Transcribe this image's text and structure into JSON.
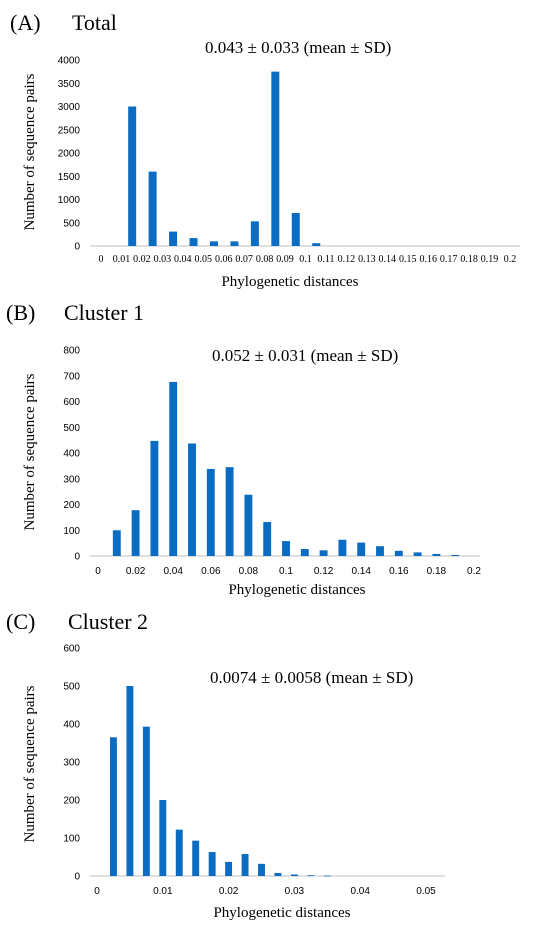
{
  "chart_data": [
    {
      "type": "bar",
      "panel": "(A)",
      "title": "Total",
      "subtitle": "0.043 ± 0.033 (mean ± SD)",
      "xlabel": "Phylogenetic distances",
      "ylabel": "Number of sequence pairs",
      "ylim": [
        0,
        4000
      ],
      "yticks": [
        "0",
        "500",
        "1000",
        "1500",
        "2000",
        "2500",
        "3000",
        "3500",
        "4000"
      ],
      "categories": [
        "0",
        "0.01",
        "0.02",
        "0.03",
        "0.04",
        "0.05",
        "0.06",
        "0.07",
        "0.08",
        "0.09",
        "0.1",
        "0.11",
        "0.12",
        "0.13",
        "0.14",
        "0.15",
        "0.16",
        "0.17",
        "0.18",
        "0.19",
        "0.2"
      ],
      "values": [
        0,
        3000,
        1600,
        310,
        170,
        100,
        100,
        530,
        3750,
        710,
        60,
        0,
        0,
        0,
        0,
        0,
        0,
        0,
        0,
        0,
        0
      ],
      "grid": false
    },
    {
      "type": "bar",
      "panel": "(B)",
      "title": "Cluster 1",
      "subtitle": "0.052 ± 0.031 (mean ± SD)",
      "xlabel": "Phylogenetic distances",
      "ylabel": "Number of sequence pairs",
      "ylim": [
        0,
        800
      ],
      "yticks": [
        "0",
        "100",
        "200",
        "300",
        "400",
        "500",
        "600",
        "700",
        "800"
      ],
      "xlim": [
        0,
        0.2
      ],
      "xticks": [
        "0",
        "0.02",
        "0.04",
        "0.06",
        "0.08",
        "0.1",
        "0.12",
        "0.14",
        "0.16",
        "0.18",
        "0.2"
      ],
      "x": [
        0.01,
        0.02,
        0.03,
        0.04,
        0.05,
        0.06,
        0.07,
        0.08,
        0.09,
        0.1,
        0.11,
        0.12,
        0.13,
        0.14,
        0.15,
        0.16,
        0.17,
        0.18,
        0.19
      ],
      "values": [
        100,
        178,
        447,
        676,
        437,
        338,
        345,
        238,
        132,
        58,
        27,
        22,
        63,
        52,
        38,
        20,
        14,
        8,
        4
      ],
      "grid": false
    },
    {
      "type": "bar",
      "panel": "(C)",
      "title": "Cluster 2",
      "subtitle": "0.0074 ± 0.0058 (mean ± SD)",
      "xlabel": "Phylogenetic distances",
      "ylabel": "Number of sequence pairs",
      "ylim": [
        0,
        600
      ],
      "yticks": [
        "0",
        "100",
        "200",
        "300",
        "400",
        "500",
        "600"
      ],
      "xlim": [
        0,
        0.05
      ],
      "xticks": [
        "0",
        "0.01",
        "0.02",
        "0.03",
        "0.04",
        "0.05"
      ],
      "x": [
        0.0025,
        0.005,
        0.0075,
        0.01,
        0.0125,
        0.015,
        0.0175,
        0.02,
        0.0225,
        0.025,
        0.0275,
        0.03,
        0.0325,
        0.035
      ],
      "values": [
        365,
        500,
        393,
        200,
        122,
        93,
        63,
        37,
        58,
        32,
        8,
        4,
        2,
        1
      ],
      "grid": false
    }
  ]
}
